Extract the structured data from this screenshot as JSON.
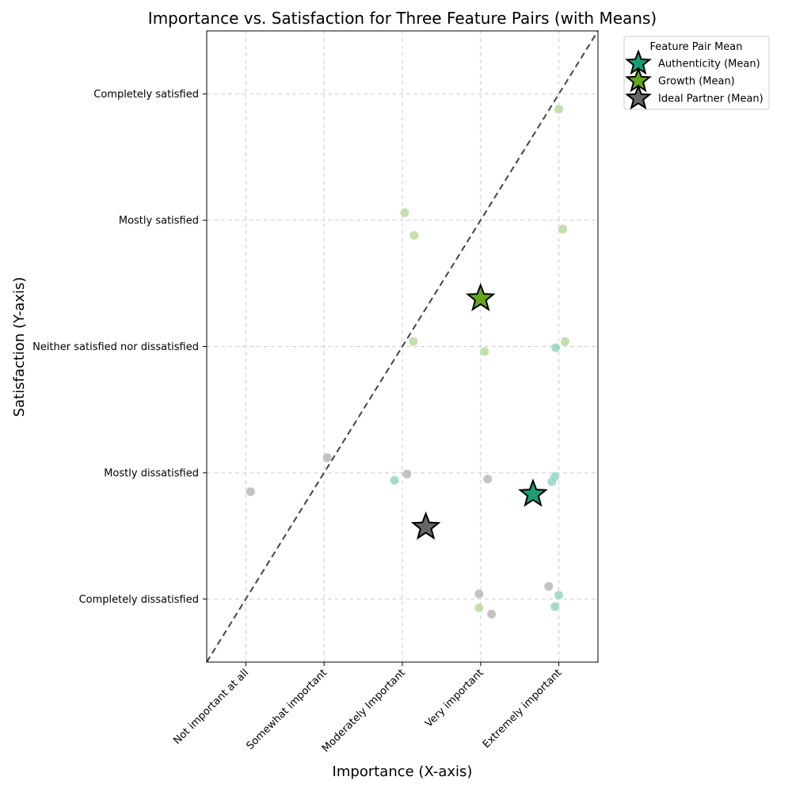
{
  "chart_data": {
    "type": "scatter",
    "title": "Importance vs. Satisfaction for Three Feature Pairs (with Means)",
    "xlabel": "Importance (X-axis)",
    "ylabel": "Satisfaction (Y-axis)",
    "x_ticks": [
      {
        "value": 1,
        "label": "Not important at all"
      },
      {
        "value": 2,
        "label": "Somewhat important"
      },
      {
        "value": 3,
        "label": "Moderately Important"
      },
      {
        "value": 4,
        "label": "Very important"
      },
      {
        "value": 5,
        "label": "Extremely important"
      }
    ],
    "y_ticks": [
      {
        "value": 1,
        "label": "Completely dissatisfied"
      },
      {
        "value": 2,
        "label": "Mostly dissatisfied"
      },
      {
        "value": 3,
        "label": "Neither satisfied nor dissatisfied"
      },
      {
        "value": 4,
        "label": "Mostly satisfied"
      },
      {
        "value": 5,
        "label": "Completely satisfied"
      }
    ],
    "xlim": [
      0.5,
      5.5
    ],
    "ylim": [
      0.5,
      5.5
    ],
    "grid": true,
    "diagonal_reference_line": true,
    "legend_title": "Feature Pair Mean",
    "legend_position": "outside-top-right",
    "series": [
      {
        "name": "Authenticity (Mean)",
        "point_color": "#99d8c9",
        "mean_color": "#1b9e77",
        "mean": {
          "x": 4.67,
          "y": 1.83
        },
        "points": [
          {
            "x": 2.9,
            "y": 1.94
          },
          {
            "x": 4.96,
            "y": 2.99
          },
          {
            "x": 4.91,
            "y": 1.93
          },
          {
            "x": 4.95,
            "y": 1.97
          },
          {
            "x": 5.0,
            "y": 1.03
          },
          {
            "x": 4.95,
            "y": 0.94
          }
        ]
      },
      {
        "name": "Growth (Mean)",
        "point_color": "#bcdca3",
        "mean_color": "#66a61e",
        "mean": {
          "x": 4.0,
          "y": 3.38
        },
        "points": [
          {
            "x": 3.03,
            "y": 4.06
          },
          {
            "x": 3.15,
            "y": 3.88
          },
          {
            "x": 5.0,
            "y": 4.88
          },
          {
            "x": 5.05,
            "y": 3.93
          },
          {
            "x": 3.14,
            "y": 3.04
          },
          {
            "x": 5.08,
            "y": 3.04
          },
          {
            "x": 4.05,
            "y": 2.96
          },
          {
            "x": 3.98,
            "y": 0.93
          }
        ]
      },
      {
        "name": "Ideal Partner (Mean)",
        "point_color": "#bdbdbd",
        "mean_color": "#666666",
        "mean": {
          "x": 3.3,
          "y": 1.57
        },
        "points": [
          {
            "x": 1.06,
            "y": 1.85
          },
          {
            "x": 2.04,
            "y": 2.12
          },
          {
            "x": 3.06,
            "y": 1.99
          },
          {
            "x": 4.09,
            "y": 1.95
          },
          {
            "x": 3.98,
            "y": 1.04
          },
          {
            "x": 4.14,
            "y": 0.88
          },
          {
            "x": 4.87,
            "y": 1.1
          }
        ]
      }
    ]
  }
}
